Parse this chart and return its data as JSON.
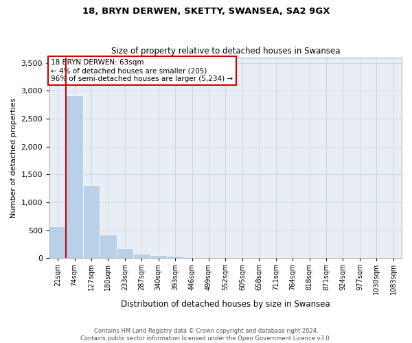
{
  "title1": "18, BRYN DERWEN, SKETTY, SWANSEA, SA2 9GX",
  "title2": "Size of property relative to detached houses in Swansea",
  "xlabel": "Distribution of detached houses by size in Swansea",
  "ylabel": "Number of detached properties",
  "footer1": "Contains HM Land Registry data © Crown copyright and database right 2024.",
  "footer2": "Contains public sector information licensed under the Open Government Licence v3.0.",
  "annotation_line1": "18 BRYN DERWEN: 63sqm",
  "annotation_line2": "← 4% of detached houses are smaller (205)",
  "annotation_line3": "96% of semi-detached houses are larger (5,234) →",
  "bar_color": "#b8d0e8",
  "grid_color": "#c8d8e8",
  "vline_color": "#cc0000",
  "vline_x_bin": 0,
  "categories": [
    "21sqm",
    "74sqm",
    "127sqm",
    "180sqm",
    "233sqm",
    "287sqm",
    "340sqm",
    "393sqm",
    "446sqm",
    "499sqm",
    "552sqm",
    "605sqm",
    "658sqm",
    "711sqm",
    "764sqm",
    "818sqm",
    "871sqm",
    "924sqm",
    "977sqm",
    "1030sqm",
    "1083sqm"
  ],
  "bin_edges": [
    0,
    1,
    2,
    3,
    4,
    5,
    6,
    7,
    8,
    9,
    10,
    11,
    12,
    13,
    14,
    15,
    16,
    17,
    18,
    19,
    20,
    21
  ],
  "values": [
    570,
    2920,
    1310,
    420,
    175,
    80,
    55,
    45,
    0,
    0,
    0,
    0,
    0,
    0,
    0,
    0,
    0,
    0,
    0,
    0,
    0
  ],
  "ylim": [
    0,
    3600
  ],
  "yticks": [
    0,
    500,
    1000,
    1500,
    2000,
    2500,
    3000,
    3500
  ],
  "annotation_box_color": "white",
  "annotation_box_edge": "#cc0000",
  "bg_color": "#e8eef4",
  "fig_width": 6.0,
  "fig_height": 5.0,
  "dpi": 100
}
